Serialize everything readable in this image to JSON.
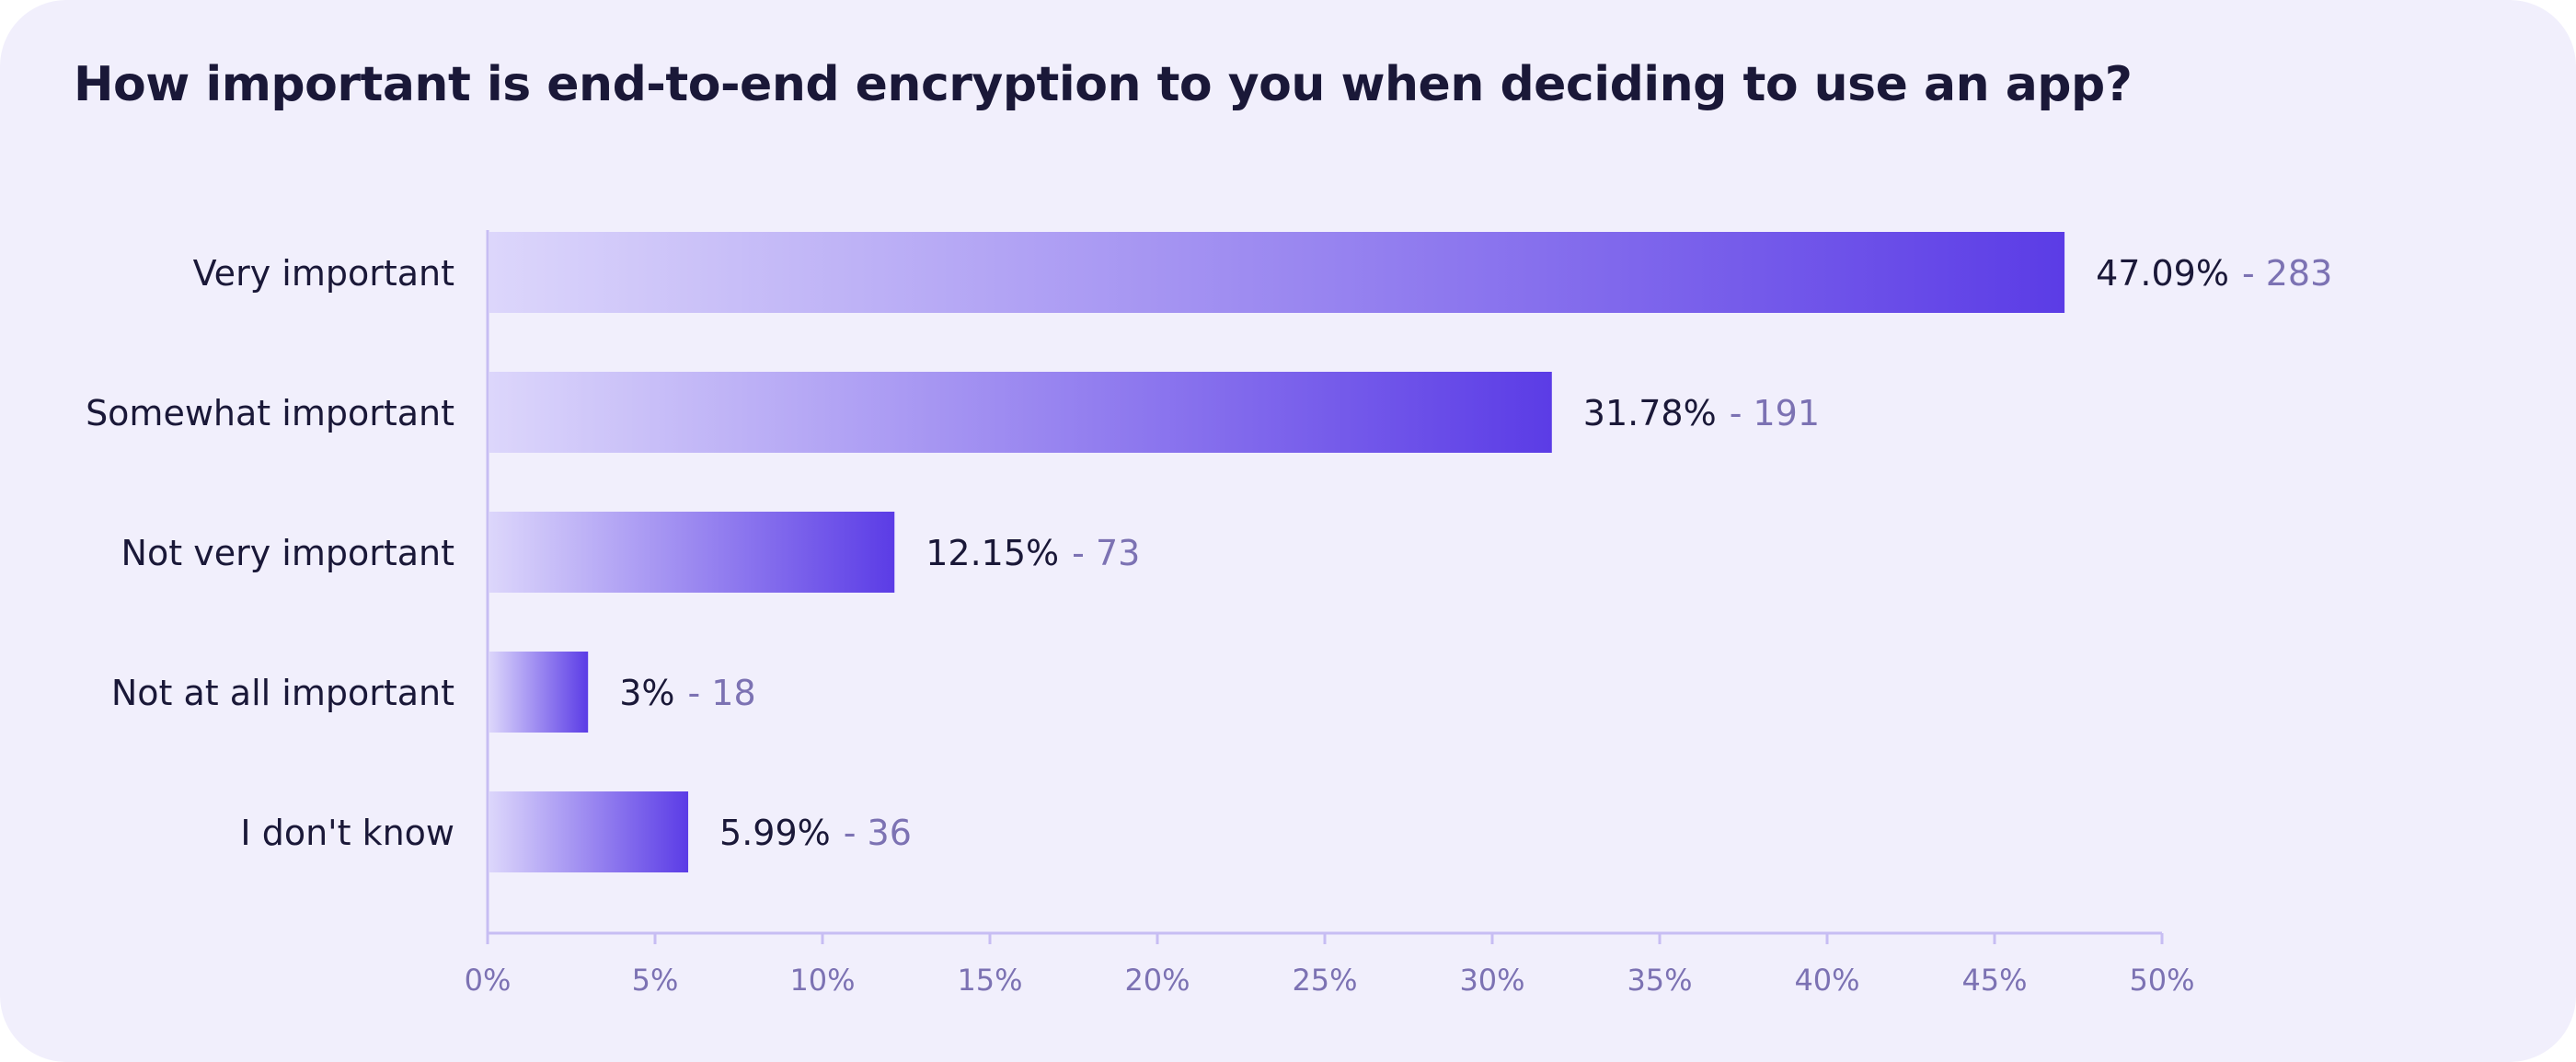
{
  "chart_data": {
    "type": "bar",
    "orientation": "horizontal",
    "title": "How important is end-to-end encryption to you when deciding to use an app?",
    "categories": [
      "Very important",
      "Somewhat important",
      "Not very important",
      "Not at all important",
      "I don't know"
    ],
    "values": [
      47.09,
      31.78,
      12.15,
      3,
      5.99
    ],
    "value_labels": [
      "47.09%",
      "31.78%",
      "12.15%",
      "3%",
      "5.99%"
    ],
    "count_labels": [
      "- 283",
      "- 191",
      "- 73",
      "- 18",
      "- 36"
    ],
    "xlim": [
      0,
      50
    ],
    "x_ticks": [
      0,
      5,
      10,
      15,
      20,
      25,
      30,
      35,
      40,
      45,
      50
    ],
    "x_tick_labels": [
      "0%",
      "5%",
      "10%",
      "15%",
      "20%",
      "25%",
      "30%",
      "35%",
      "40%",
      "45%",
      "50%"
    ],
    "grid": false,
    "legend": "none",
    "colors": {
      "background": "#f1effc",
      "bar_start": "#dcd6fb",
      "bar_end": "#5b3ce6",
      "axis": "#c7bdf3",
      "value_text": "#1a1838",
      "count_text": "#7c72b3",
      "tick_text": "#7c72b3",
      "category_text": "#1a1838"
    }
  }
}
